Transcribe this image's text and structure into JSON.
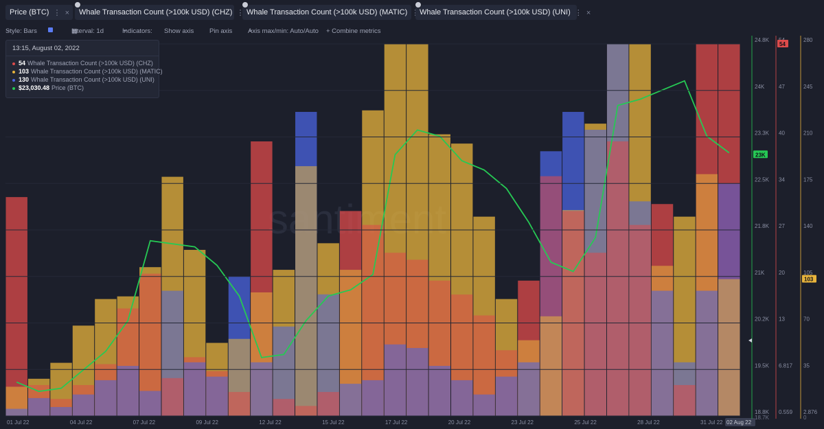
{
  "tabs": [
    {
      "label": "Price (BTC)",
      "color": "#26c954"
    },
    {
      "label": "Whale Transaction Count (>100k USD) (CHZ)",
      "color": "#dd4b4b"
    },
    {
      "label": "Whale Transaction Count (>100k USD) (MATIC)",
      "color": "#e8b43c"
    },
    {
      "label": "Whale Transaction Count (>100k USD) (UNI)",
      "color": "#4a64e0"
    }
  ],
  "toolbar": {
    "style": "Style: Bars",
    "interval": "Interval: 1d",
    "indicators": "Indicators:",
    "show_axis": "Show axis",
    "pin_axis": "Pin axis",
    "axis_maxmin": "Axis max/min: Auto/Auto",
    "combine": "+ Combine metrics"
  },
  "tooltip": {
    "date": "13:15, August 02, 2022",
    "rows": [
      {
        "value": "54",
        "name": "Whale Transaction Count (>100k USD) (CHZ)",
        "color": "#dd4b4b"
      },
      {
        "value": "103",
        "name": "Whale Transaction Count (>100k USD) (MATIC)",
        "color": "#e8b43c"
      },
      {
        "value": "130",
        "name": "Whale Transaction Count (>100k USD) (UNI)",
        "color": "#4a64e0"
      },
      {
        "value": "$23,030.48",
        "name": "Price (BTC)",
        "color": "#26c954"
      }
    ]
  },
  "watermark": "santiment",
  "chart_data": {
    "type": "bar",
    "x_labels": [
      "01 Jul 22",
      "04 Jul 22",
      "07 Jul 22",
      "09 Jul 22",
      "12 Jul 22",
      "15 Jul 22",
      "17 Jul 22",
      "20 Jul 22",
      "23 Jul 22",
      "25 Jul 22",
      "28 Jul 22",
      "31 Jul 22"
    ],
    "x_last_label": "02 Aug 22",
    "days": [
      "Jul 01",
      "Jul 02",
      "Jul 03",
      "Jul 04",
      "Jul 05",
      "Jul 06",
      "Jul 07",
      "Jul 08",
      "Jul 09",
      "Jul 10",
      "Jul 11",
      "Jul 12",
      "Jul 13",
      "Jul 14",
      "Jul 15",
      "Jul 16",
      "Jul 17",
      "Jul 18",
      "Jul 19",
      "Jul 20",
      "Jul 21",
      "Jul 22",
      "Jul 23",
      "Jul 24",
      "Jul 25",
      "Jul 26",
      "Jul 27",
      "Jul 28",
      "Jul 29",
      "Jul 30",
      "Jul 31",
      "Aug 01",
      "Aug 02"
    ],
    "series": [
      {
        "name": "Whale Transaction Count (>100k USD) (CHZ)",
        "color": "#dd4b4b",
        "axis": "chz",
        "values": [
          32,
          5,
          3,
          5,
          8,
          16,
          21,
          6,
          9,
          7,
          4,
          40,
          3,
          2,
          4,
          30,
          28,
          24,
          23,
          20,
          18,
          15,
          10,
          20,
          35,
          30,
          24,
          40,
          28,
          31,
          5,
          62,
          54
        ]
      },
      {
        "name": "Whale Transaction Count (>100k USD) (MATIC)",
        "color": "#e8b43c",
        "axis": "matic",
        "values": [
          22,
          28,
          40,
          68,
          88,
          90,
          112,
          180,
          125,
          55,
          58,
          93,
          110,
          188,
          130,
          110,
          230,
          280,
          298,
          212,
          205,
          150,
          88,
          57,
          75,
          155,
          220,
          295,
          308,
          113,
          150,
          182,
          103
        ]
      },
      {
        "name": "Whale Transaction Count (>100k USD) (UNI)",
        "color": "#4a64e0",
        "axis": "uni",
        "values": [
          4,
          10,
          5,
          12,
          20,
          28,
          14,
          70,
          30,
          22,
          78,
          30,
          50,
          170,
          68,
          18,
          20,
          40,
          38,
          28,
          20,
          12,
          22,
          30,
          148,
          170,
          160,
          208,
          120,
          70,
          30,
          70,
          130
        ]
      },
      {
        "name": "Price (BTC)",
        "color": "#26c954",
        "axis": "btc",
        "values": [
          19300,
          19150,
          19200,
          19500,
          19800,
          20300,
          21600,
          21550,
          21500,
          21200,
          20700,
          19700,
          19750,
          20300,
          20700,
          20800,
          21050,
          23000,
          23400,
          23300,
          22900,
          22750,
          22450,
          21900,
          21250,
          21100,
          21650,
          23800,
          23900,
          24050,
          24200,
          23300,
          23030
        ]
      }
    ],
    "axes": {
      "btc": {
        "color": "#26c954",
        "ticks": [
          "24.8K",
          "24K",
          "23.3K",
          "22.5K",
          "21.8K",
          "21K",
          "20.2K",
          "19.5K",
          "18.8K"
        ],
        "badge": "23K",
        "ylim": [
          18750,
          24800
        ]
      },
      "chz": {
        "color": "#dd4b4b",
        "ticks": [
          "54",
          "47",
          "40",
          "34",
          "27",
          "20",
          "13",
          "6.817",
          "0.559"
        ],
        "badge": "54",
        "ylim": [
          0.559,
          54
        ]
      },
      "matic": {
        "color": "#e8b43c",
        "ticks": [
          "280",
          "245",
          "210",
          "175",
          "140",
          "105",
          "70",
          "35",
          "2.876"
        ],
        "badge": "103",
        "ylim": [
          0,
          280
        ]
      }
    },
    "extra_labels": [
      "18.7K",
      "0"
    ]
  }
}
